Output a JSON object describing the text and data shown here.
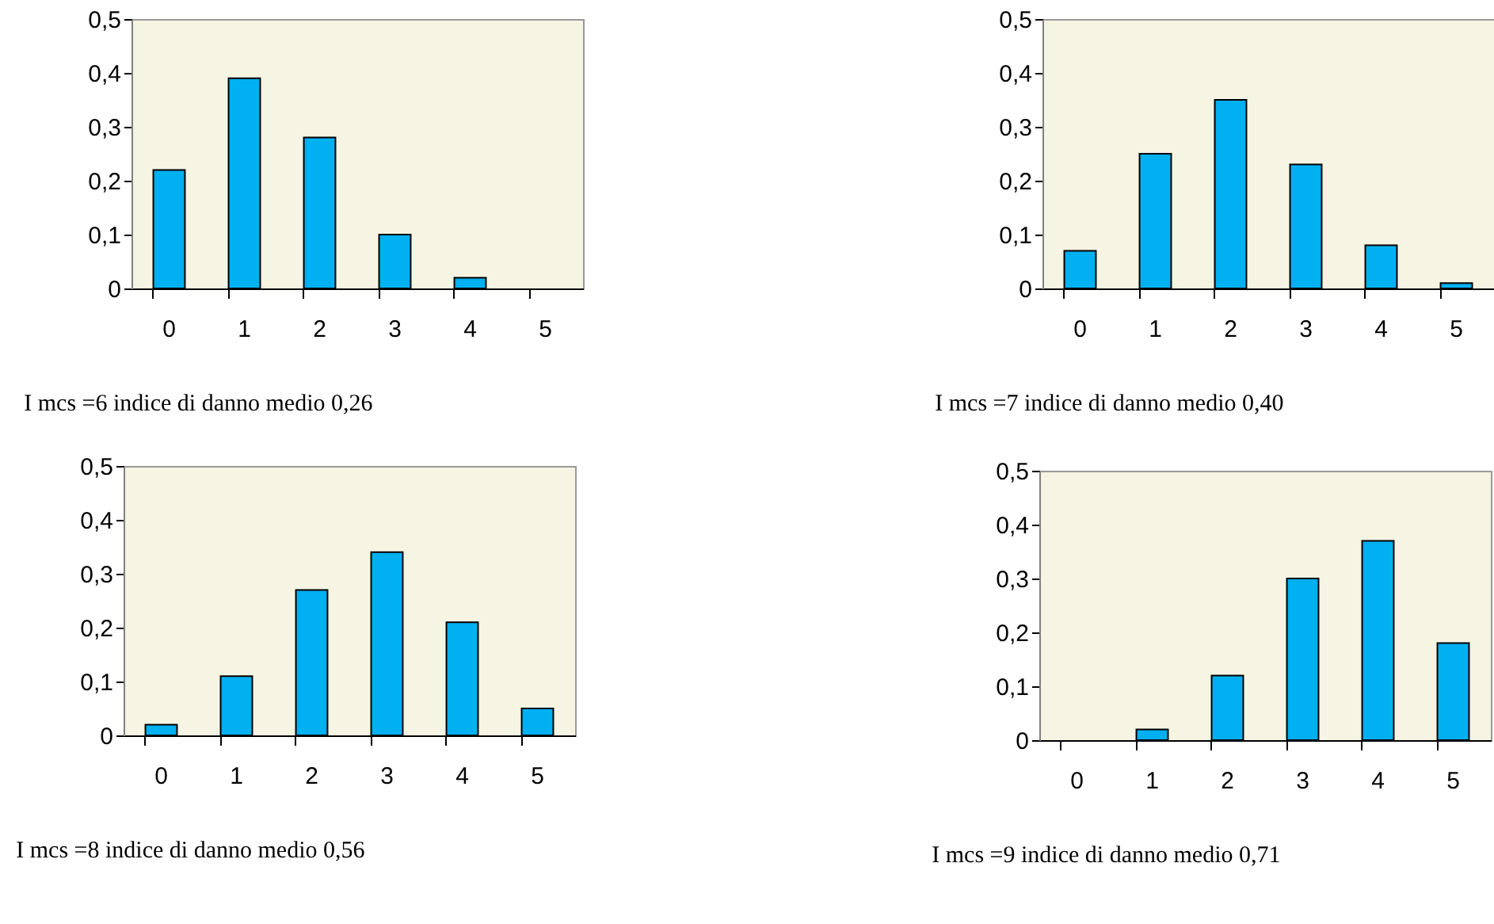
{
  "chart_data": [
    {
      "type": "bar",
      "categories": [
        "0",
        "1",
        "2",
        "3",
        "4",
        "5"
      ],
      "values": [
        0.22,
        0.39,
        0.28,
        0.1,
        0.02,
        0
      ],
      "color": "#00b0f0",
      "ylim": [
        0,
        0.5
      ],
      "yticks": [
        {
          "value": 0,
          "label": "0"
        },
        {
          "value": 0.1,
          "label": "0,1"
        },
        {
          "value": 0.2,
          "label": "0,2"
        },
        {
          "value": 0.3,
          "label": "0,3"
        },
        {
          "value": 0.4,
          "label": "0,4"
        },
        {
          "value": 0.5,
          "label": "0,5"
        }
      ],
      "annotations": [
        "I mcs =6   indice di danno medio 0,26"
      ]
    },
    {
      "type": "bar",
      "categories": [
        "0",
        "1",
        "2",
        "3",
        "4",
        "5"
      ],
      "values": [
        0.07,
        0.25,
        0.35,
        0.23,
        0.08,
        0.01
      ],
      "color": "#00b0f0",
      "ylim": [
        0,
        0.5
      ],
      "yticks": [
        {
          "value": 0,
          "label": "0"
        },
        {
          "value": 0.1,
          "label": "0,1"
        },
        {
          "value": 0.2,
          "label": "0,2"
        },
        {
          "value": 0.3,
          "label": "0,3"
        },
        {
          "value": 0.4,
          "label": "0,4"
        },
        {
          "value": 0.5,
          "label": "0,5"
        }
      ],
      "annotations": [
        "I mcs =7   indice di danno medio 0,40"
      ]
    },
    {
      "type": "bar",
      "categories": [
        "0",
        "1",
        "2",
        "3",
        "4",
        "5"
      ],
      "values": [
        0.02,
        0.11,
        0.27,
        0.34,
        0.21,
        0.05
      ],
      "color": "#00b0f0",
      "ylim": [
        0,
        0.5
      ],
      "yticks": [
        {
          "value": 0,
          "label": "0"
        },
        {
          "value": 0.1,
          "label": "0,1"
        },
        {
          "value": 0.2,
          "label": "0,2"
        },
        {
          "value": 0.3,
          "label": "0,3"
        },
        {
          "value": 0.4,
          "label": "0,4"
        },
        {
          "value": 0.5,
          "label": "0,5"
        }
      ],
      "annotations": [
        "I mcs =8   indice di danno medio 0,56"
      ]
    },
    {
      "type": "bar",
      "categories": [
        "0",
        "1",
        "2",
        "3",
        "4",
        "5"
      ],
      "values": [
        0,
        0.02,
        0.12,
        0.3,
        0.37,
        0.18
      ],
      "color": "#00b0f0",
      "ylim": [
        0,
        0.5
      ],
      "yticks": [
        {
          "value": 0,
          "label": "0"
        },
        {
          "value": 0.1,
          "label": "0,1"
        },
        {
          "value": 0.2,
          "label": "0,2"
        },
        {
          "value": 0.3,
          "label": "0,3"
        },
        {
          "value": 0.4,
          "label": "0,4"
        },
        {
          "value": 0.5,
          "label": "0,5"
        }
      ],
      "annotations": [
        "I mcs =9   indice di danno medio 0,71"
      ]
    }
  ]
}
